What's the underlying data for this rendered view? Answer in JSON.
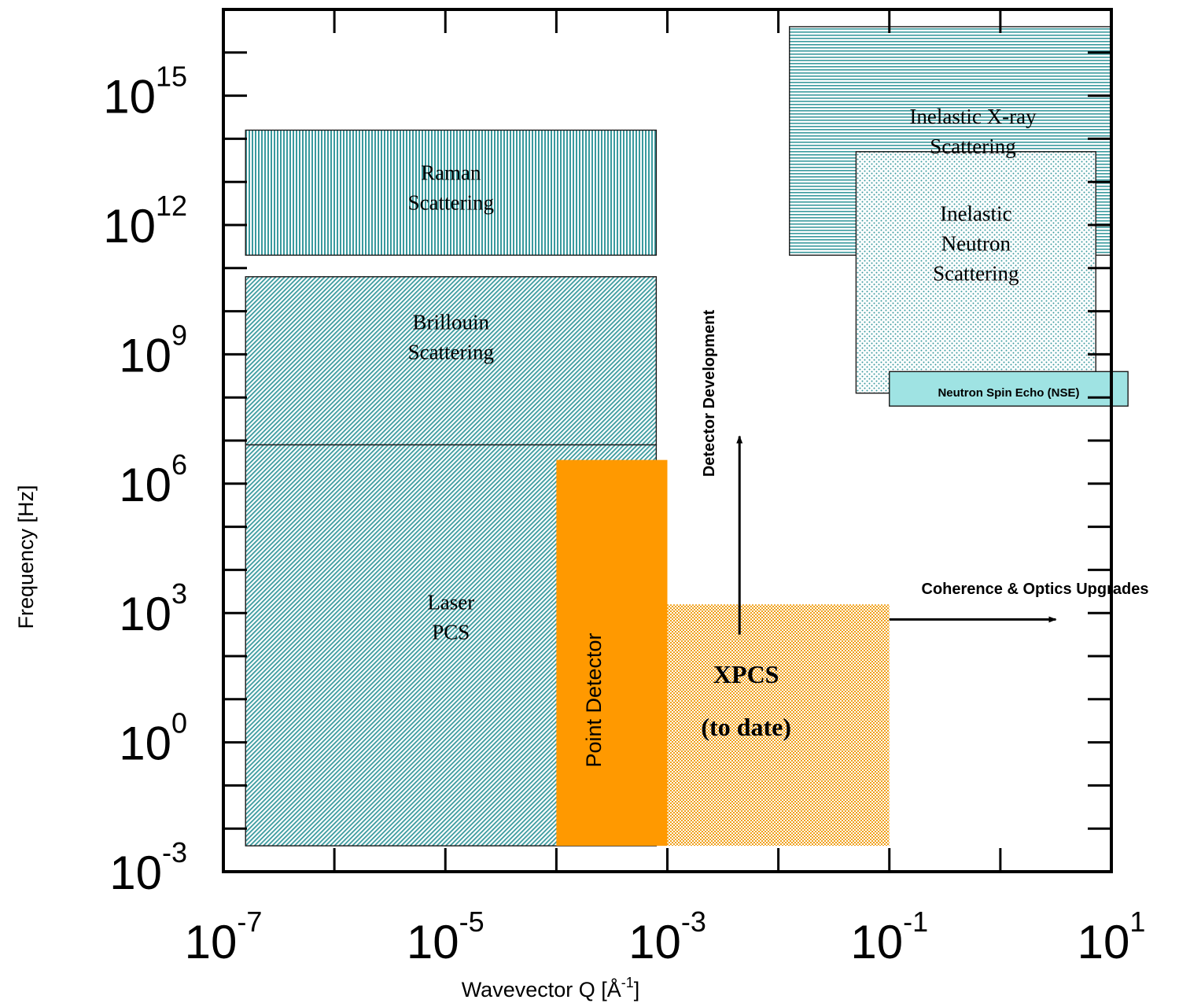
{
  "chart_data": {
    "type": "region-map",
    "xlabel": "Wavevector Q [Å-1]",
    "xlabel_main": "Wavevector Q [Å",
    "xlabel_sup": "-1",
    "xlabel_end": "]",
    "ylabel": "Frequency [Hz]",
    "x_scale": "log",
    "y_scale": "log",
    "xlim_exp": [
      -7,
      1
    ],
    "ylim_exp": [
      -3,
      17
    ],
    "x_ticks": [
      {
        "base": "10",
        "exp": "-7",
        "e": -7
      },
      {
        "base": "10",
        "exp": "-5",
        "e": -5
      },
      {
        "base": "10",
        "exp": "-3",
        "e": -3
      },
      {
        "base": "10",
        "exp": "-1",
        "e": -1
      },
      {
        "base": "10",
        "exp": "1",
        "e": 1
      }
    ],
    "y_ticks": [
      {
        "base": "10",
        "exp": "-3",
        "e": -3
      },
      {
        "base": "10",
        "exp": "0",
        "e": 0
      },
      {
        "base": "10",
        "exp": "3",
        "e": 3
      },
      {
        "base": "10",
        "exp": "6",
        "e": 6
      },
      {
        "base": "10",
        "exp": "9",
        "e": 9
      },
      {
        "base": "10",
        "exp": "12",
        "e": 12
      },
      {
        "base": "10",
        "exp": "15",
        "e": 15
      }
    ],
    "regions": [
      {
        "id": "raman",
        "label": [
          "Raman",
          "Scattering"
        ],
        "q_exp": [
          -6.8,
          -3.1
        ],
        "f_exp": [
          11.3,
          14.2
        ],
        "pattern": "vertical-lines",
        "color": "#3a9a9e"
      },
      {
        "id": "brillouin",
        "label": [
          "Brillouin",
          "Scattering"
        ],
        "q_exp": [
          -6.8,
          -3.1
        ],
        "f_exp": [
          6.9,
          10.8
        ],
        "pattern": "diagonal-lines",
        "color": "#3a9a9e"
      },
      {
        "id": "laser-pcs",
        "label": [
          "Laser",
          "PCS"
        ],
        "q_exp": [
          -6.8,
          -3.1
        ],
        "f_exp": [
          -2.4,
          6.9
        ],
        "pattern": "diagonal-lines",
        "color": "#3a9a9e"
      },
      {
        "id": "inelastic-xray",
        "label": [
          "Inelastic X-ray",
          "Scattering"
        ],
        "q_exp": [
          -1.9,
          1.0
        ],
        "f_exp": [
          11.3,
          16.6
        ],
        "pattern": "horizontal-lines",
        "color": "#3a9a9e"
      },
      {
        "id": "inelastic-neutron",
        "label": [
          "Inelastic",
          "Neutron",
          "Scattering"
        ],
        "q_exp": [
          -1.3,
          0.86
        ],
        "f_exp": [
          8.1,
          13.7
        ],
        "pattern": "dots",
        "color": "#3a9a9e"
      },
      {
        "id": "nse",
        "label": [
          "Neutron Spin Echo (NSE)"
        ],
        "q_exp": [
          -1.0,
          1.15
        ],
        "f_exp": [
          7.8,
          8.6
        ],
        "pattern": "solid",
        "color": "#9fe3e3"
      },
      {
        "id": "xpcs",
        "label": [
          "XPCS",
          "(to date)"
        ],
        "q_exp": [
          -3.0,
          -1.0
        ],
        "f_exp": [
          -2.4,
          3.2
        ],
        "pattern": "checker",
        "color": "#f0a018"
      },
      {
        "id": "point-detector",
        "label": [
          "Point Detector"
        ],
        "q_exp": [
          -4.0,
          -3.0
        ],
        "f_exp": [
          -2.4,
          6.55
        ],
        "pattern": "solid",
        "color": "#ff9900"
      }
    ],
    "annotations": [
      {
        "id": "detector-development",
        "text": "Detector Development",
        "direction": "up",
        "arrow_q_exp": -2.35,
        "arrow_f_exp": [
          2.5,
          7.1
        ]
      },
      {
        "id": "coherence-optics",
        "text": "Coherence & Optics Upgrades",
        "direction": "right",
        "arrow_q_exp": [
          -1.0,
          0.5
        ],
        "arrow_f_exp": 2.85
      }
    ]
  }
}
